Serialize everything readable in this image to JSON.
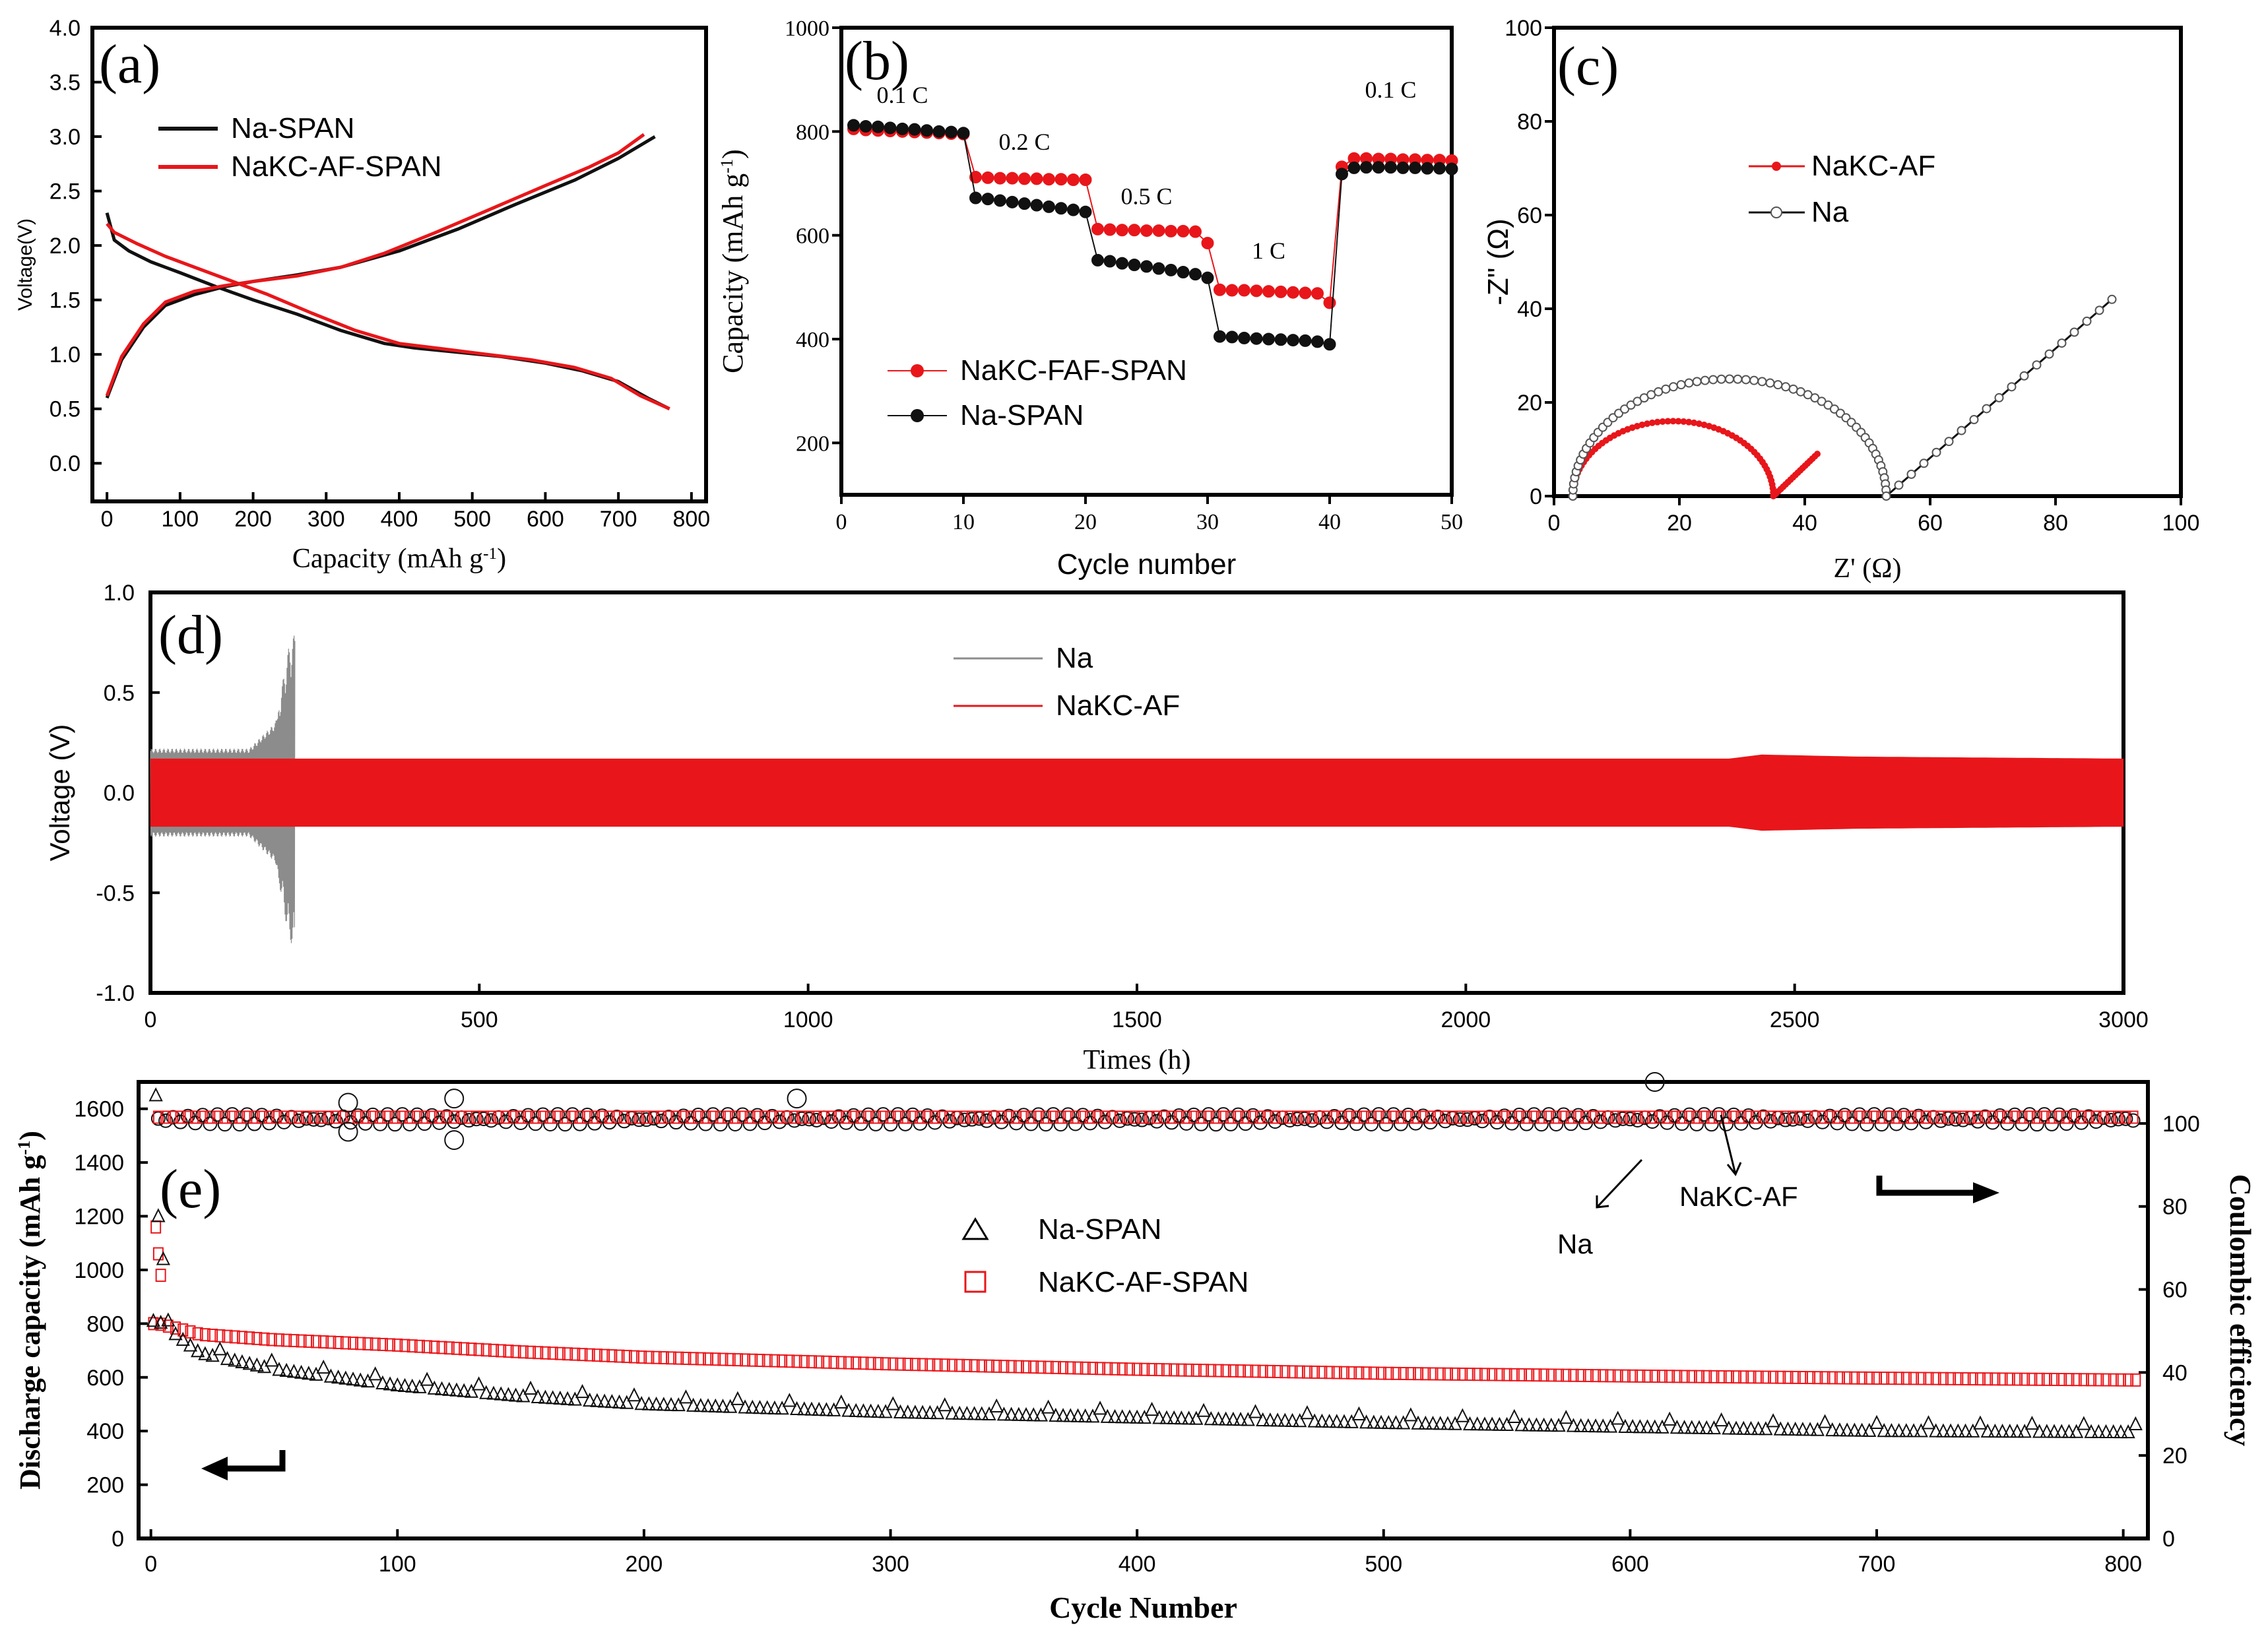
{
  "figure": "Five-panel electrochemical performance figure",
  "colors": {
    "red": "#e8161a",
    "black": "#111111",
    "gray": "#8c8c8c"
  },
  "chart_data": [
    {
      "id": "a",
      "type": "line",
      "panel_label": "(a)",
      "xlabel": "Capacity (mAh g-1)",
      "ylabel": "Voltage(V)",
      "xlim": [
        -20,
        820
      ],
      "ylim": [
        -0.35,
        4.0
      ],
      "xticks": [
        0,
        100,
        200,
        300,
        400,
        500,
        600,
        700,
        800
      ],
      "yticks": [
        0.0,
        0.5,
        1.0,
        1.5,
        2.0,
        2.5,
        3.0,
        3.5,
        4.0
      ],
      "legend": [
        "Na-SPAN",
        "NaKC-AF-SPAN"
      ],
      "series": [
        {
          "name": "Na-SPAN discharge",
          "color": "black",
          "x": [
            0,
            10,
            30,
            60,
            100,
            150,
            200,
            260,
            320,
            380,
            420,
            480,
            540,
            600,
            650,
            700,
            740,
            770
          ],
          "y": [
            2.3,
            2.05,
            1.95,
            1.85,
            1.75,
            1.62,
            1.5,
            1.37,
            1.22,
            1.1,
            1.06,
            1.02,
            0.98,
            0.92,
            0.85,
            0.75,
            0.6,
            0.5
          ]
        },
        {
          "name": "Na-SPAN charge",
          "color": "black",
          "x": [
            0,
            20,
            50,
            80,
            120,
            160,
            200,
            260,
            320,
            400,
            480,
            560,
            640,
            700,
            750
          ],
          "y": [
            0.6,
            0.95,
            1.25,
            1.45,
            1.55,
            1.62,
            1.67,
            1.73,
            1.8,
            1.95,
            2.15,
            2.38,
            2.6,
            2.8,
            3.0
          ]
        },
        {
          "name": "NaKC-AF-SPAN discharge",
          "color": "red",
          "x": [
            0,
            10,
            40,
            80,
            120,
            160,
            220,
            280,
            340,
            400,
            460,
            520,
            580,
            640,
            690,
            730,
            770
          ],
          "y": [
            2.2,
            2.12,
            2.02,
            1.9,
            1.8,
            1.7,
            1.55,
            1.38,
            1.22,
            1.1,
            1.05,
            1.0,
            0.95,
            0.88,
            0.78,
            0.62,
            0.5
          ]
        },
        {
          "name": "NaKC-AF-SPAN charge",
          "color": "red",
          "x": [
            0,
            20,
            50,
            80,
            120,
            160,
            200,
            260,
            320,
            380,
            450,
            520,
            600,
            660,
            700,
            735
          ],
          "y": [
            0.62,
            0.98,
            1.28,
            1.48,
            1.58,
            1.63,
            1.67,
            1.72,
            1.8,
            1.93,
            2.12,
            2.32,
            2.55,
            2.72,
            2.85,
            3.02
          ]
        }
      ]
    },
    {
      "id": "b",
      "type": "scatter",
      "panel_label": "(b)",
      "xlabel": "Cycle number",
      "ylabel": "Capacity  (mAh g-1)",
      "xlim": [
        0,
        50
      ],
      "ylim": [
        100,
        1000
      ],
      "xticks": [
        0,
        10,
        20,
        30,
        40,
        50
      ],
      "yticks": [
        200,
        400,
        600,
        800,
        1000
      ],
      "legend": [
        "NaKC-FAF-SPAN",
        "Na-SPAN"
      ],
      "rate_labels": [
        "0.1 C",
        "0.2 C",
        "0.5 C",
        "1 C",
        "0.1 C"
      ],
      "series": [
        {
          "name": "NaKC-FAF-SPAN",
          "color": "red",
          "x": [
            1,
            2,
            3,
            4,
            5,
            6,
            7,
            8,
            9,
            10,
            11,
            12,
            13,
            14,
            15,
            16,
            17,
            18,
            19,
            20,
            21,
            22,
            23,
            24,
            25,
            26,
            27,
            28,
            29,
            30,
            31,
            32,
            33,
            34,
            35,
            36,
            37,
            38,
            39,
            40,
            41,
            42,
            43,
            44,
            45,
            46,
            47,
            48,
            49,
            50
          ],
          "y": [
            805,
            803,
            802,
            801,
            800,
            799,
            798,
            797,
            796,
            795,
            712,
            711,
            710,
            710,
            709,
            709,
            708,
            708,
            707,
            707,
            612,
            611,
            610,
            610,
            609,
            609,
            608,
            608,
            607,
            585,
            495,
            494,
            494,
            493,
            492,
            491,
            490,
            489,
            488,
            470,
            732,
            748,
            748,
            747,
            747,
            746,
            746,
            745,
            745,
            744
          ]
        },
        {
          "name": "Na-SPAN",
          "color": "black",
          "x": [
            1,
            2,
            3,
            4,
            5,
            6,
            7,
            8,
            9,
            10,
            11,
            12,
            13,
            14,
            15,
            16,
            17,
            18,
            19,
            20,
            21,
            22,
            23,
            24,
            25,
            26,
            27,
            28,
            29,
            30,
            31,
            32,
            33,
            34,
            35,
            36,
            37,
            38,
            39,
            40,
            41,
            42,
            43,
            44,
            45,
            46,
            47,
            48,
            49,
            50
          ],
          "y": [
            812,
            810,
            809,
            807,
            805,
            804,
            802,
            800,
            799,
            797,
            672,
            670,
            667,
            664,
            661,
            658,
            655,
            652,
            649,
            645,
            552,
            550,
            546,
            543,
            540,
            536,
            533,
            529,
            525,
            518,
            405,
            404,
            402,
            401,
            400,
            399,
            398,
            397,
            395,
            390,
            718,
            730,
            731,
            731,
            731,
            730,
            730,
            729,
            729,
            728
          ]
        }
      ]
    },
    {
      "id": "c",
      "type": "line",
      "panel_label": "(c)",
      "xlabel": "Z' (Ω)",
      "ylabel": "-Z\" (Ω)",
      "xlim": [
        0,
        100
      ],
      "ylim": [
        0,
        100
      ],
      "xticks": [
        0,
        20,
        40,
        60,
        80,
        100
      ],
      "yticks": [
        0,
        20,
        40,
        60,
        80,
        100
      ],
      "legend": [
        "NaKC-AF",
        "Na"
      ],
      "series": [
        {
          "name": "NaKC-AF",
          "color": "red",
          "center": 19,
          "radius": 16,
          "start": 2.5,
          "end": 35,
          "tail_end": [
            42,
            9
          ]
        },
        {
          "name": "Na",
          "color": "black",
          "center": 28,
          "radius": 25,
          "start": 2.5,
          "end": 53,
          "tail_end": [
            89,
            42
          ]
        }
      ]
    },
    {
      "id": "d",
      "type": "line",
      "panel_label": "(d)",
      "xlabel": "Times (h)",
      "ylabel": "Voltage (V)",
      "xlim": [
        0,
        3000
      ],
      "ylim": [
        -1.0,
        1.0
      ],
      "xticks": [
        0,
        500,
        1000,
        1500,
        2000,
        2500,
        3000
      ],
      "yticks": [
        -1.0,
        -0.5,
        0.0,
        0.5,
        1.0
      ],
      "legend": [
        "Na",
        "NaKC-AF"
      ],
      "series": [
        {
          "name": "Na",
          "color": "gray",
          "x": [
            0,
            150,
            190,
            210,
            220
          ],
          "amplitude": [
            0.22,
            0.22,
            0.35,
            0.72,
            0.8
          ]
        },
        {
          "name": "NaKC-AF",
          "color": "red",
          "x": [
            0,
            2400,
            2450,
            2600,
            3000
          ],
          "amplitude": [
            0.17,
            0.17,
            0.19,
            0.18,
            0.17
          ]
        }
      ]
    },
    {
      "id": "e",
      "type": "scatter",
      "panel_label": "(e)",
      "xlabel": "Cycle Number",
      "ylabel": "Discharge capacity (mAh g-1)",
      "y2label": "Coulombic efficiency",
      "xlim": [
        -5,
        810
      ],
      "ylim": [
        0,
        1700
      ],
      "y2lim": [
        0,
        110
      ],
      "xticks": [
        0,
        100,
        200,
        300,
        400,
        500,
        600,
        700,
        800
      ],
      "yticks": [
        0,
        200,
        400,
        600,
        800,
        1000,
        1200,
        1400,
        1600
      ],
      "y2ticks": [
        0,
        20,
        40,
        60,
        80,
        100
      ],
      "legend": [
        "Na-SPAN",
        "NaKC-AF-SPAN"
      ],
      "annotations": [
        "NaKC-AF",
        "Na"
      ],
      "series": [
        {
          "name": "Na-SPAN",
          "color": "black",
          "x": [
            3,
            20,
            50,
            100,
            150,
            200,
            300,
            400,
            500,
            600,
            700,
            805
          ],
          "y": [
            820,
            700,
            640,
            580,
            540,
            510,
            480,
            460,
            440,
            425,
            410,
            405
          ]
        },
        {
          "name": "NaKC-AF-SPAN",
          "color": "red",
          "x": [
            3,
            20,
            50,
            100,
            150,
            200,
            300,
            400,
            500,
            600,
            700,
            805
          ],
          "y": [
            800,
            760,
            740,
            720,
            695,
            675,
            650,
            630,
            615,
            605,
            597,
            590
          ]
        },
        {
          "name": "CE Na-SPAN",
          "color": "black",
          "y2": 101
        },
        {
          "name": "CE NaKC-AF-SPAN",
          "color": "red",
          "y2": 101
        }
      ]
    }
  ],
  "text": {
    "a_xlabel_main": "Capacity (mAh g",
    "a_xlabel_sup": "-1",
    "b_ylabel_main": "Capacity  (mAh g",
    "b_ylabel_sup": "-1",
    "e_ylabel_main": "Discharge capacity (mAh g",
    "e_ylabel_sup": "-1",
    "c_ylabel": "-Z\" (Ω)",
    "c_xlabel": "Z' (Ω)"
  }
}
